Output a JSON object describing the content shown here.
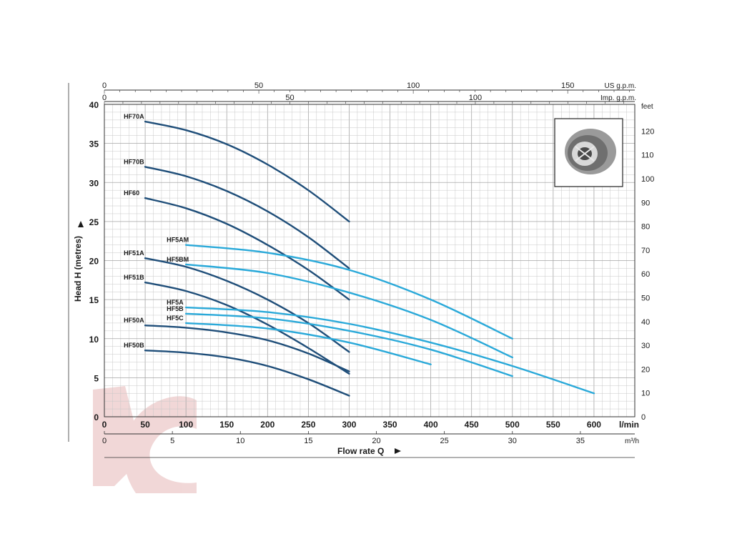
{
  "chart_data": {
    "type": "line",
    "ylabel": "Head H (metres)",
    "xlabel": "Flow rate Q",
    "x_unit": "l/min",
    "x2_unit": "m³/h",
    "top_axis_1_unit": "US g.p.m.",
    "top_axis_2_unit": "Imp. g.p.m.",
    "right_axis_unit": "feet",
    "xlim": [
      0,
      650
    ],
    "ylim": [
      0,
      40
    ],
    "x_ticks": [
      "0",
      "50",
      "100",
      "150",
      "200",
      "250",
      "300",
      "350",
      "400",
      "450",
      "500",
      "550",
      "600"
    ],
    "y_ticks": [
      "0",
      "5",
      "10",
      "15",
      "20",
      "25",
      "30",
      "35",
      "40"
    ],
    "m3h_ticks": [
      "0",
      "5",
      "10",
      "15",
      "20",
      "25",
      "30",
      "35"
    ],
    "us_gpm_ticks": [
      "0",
      "50",
      "100",
      "150"
    ],
    "imp_gpm_ticks": [
      "0",
      "50",
      "100"
    ],
    "feet_ticks": [
      "0",
      "10",
      "20",
      "30",
      "40",
      "50",
      "60",
      "70",
      "80",
      "90",
      "100",
      "110",
      "120"
    ],
    "grid": true,
    "colors": {
      "dark_series": "#1f4e79",
      "light_series": "#2aa9d9",
      "watermark": "#e8c4c4"
    },
    "series": [
      {
        "name": "HF70A",
        "tone": "dark",
        "x": [
          50,
          100,
          150,
          200,
          250,
          300
        ],
        "y": [
          37.8,
          36.7,
          34.9,
          32.3,
          29.0,
          25.0
        ]
      },
      {
        "name": "HF70B",
        "tone": "dark",
        "x": [
          50,
          100,
          150,
          200,
          250,
          300
        ],
        "y": [
          32.0,
          30.8,
          28.9,
          26.3,
          23.0,
          19.0
        ]
      },
      {
        "name": "HF60",
        "tone": "dark",
        "x": [
          50,
          100,
          150,
          200,
          250,
          300
        ],
        "y": [
          28.0,
          26.7,
          24.7,
          22.0,
          18.8,
          15.0
        ]
      },
      {
        "name": "HF51A",
        "tone": "dark",
        "x": [
          50,
          100,
          150,
          200,
          250,
          300
        ],
        "y": [
          20.3,
          19.2,
          17.4,
          15.0,
          12.0,
          8.3
        ]
      },
      {
        "name": "HF51B",
        "tone": "dark",
        "x": [
          50,
          100,
          150,
          200,
          250,
          300
        ],
        "y": [
          17.2,
          16.1,
          14.3,
          11.8,
          8.8,
          5.5
        ]
      },
      {
        "name": "HF50A",
        "tone": "dark",
        "x": [
          50,
          100,
          150,
          200,
          250,
          300
        ],
        "y": [
          11.7,
          11.4,
          10.8,
          9.8,
          8.1,
          5.8
        ]
      },
      {
        "name": "HF50B",
        "tone": "dark",
        "x": [
          50,
          100,
          150,
          200,
          250,
          300
        ],
        "y": [
          8.5,
          8.2,
          7.6,
          6.5,
          4.8,
          2.7
        ]
      },
      {
        "name": "HF5AM",
        "tone": "light",
        "x": [
          100,
          200,
          300,
          400,
          500
        ],
        "y": [
          22.0,
          21.0,
          18.8,
          15.0,
          10.0
        ]
      },
      {
        "name": "HF5BM",
        "tone": "light",
        "x": [
          100,
          200,
          300,
          400,
          500
        ],
        "y": [
          19.5,
          18.4,
          15.9,
          12.4,
          7.6
        ]
      },
      {
        "name": "HF5A",
        "tone": "light",
        "x": [
          100,
          200,
          300,
          400,
          500,
          600
        ],
        "y": [
          14.0,
          13.4,
          11.9,
          9.5,
          6.5,
          3.0
        ]
      },
      {
        "name": "HF5B",
        "tone": "light",
        "x": [
          100,
          200,
          300,
          400,
          500
        ],
        "y": [
          13.2,
          12.6,
          11.0,
          8.6,
          5.2
        ]
      },
      {
        "name": "HF5C",
        "tone": "light",
        "x": [
          100,
          200,
          300,
          400
        ],
        "y": [
          12.0,
          11.3,
          9.5,
          6.7
        ]
      }
    ]
  }
}
